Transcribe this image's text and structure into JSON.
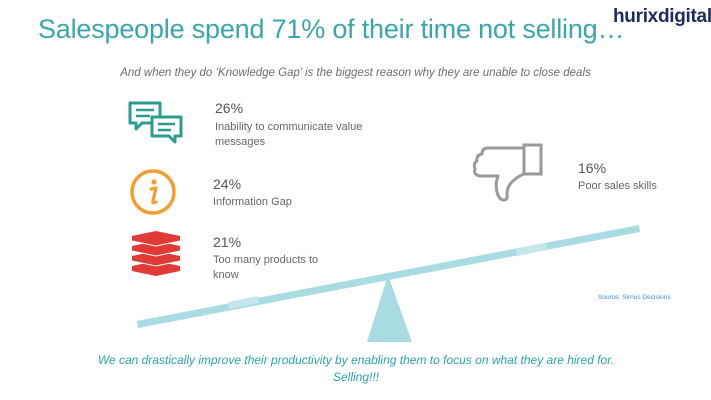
{
  "header": {
    "title": "Salespeople spend 71% of their time not selling…",
    "logo_text": "hurixdigital",
    "subtitle": "And when they do ‘Knowledge Gap’ is the biggest reason why they are unable to close deals"
  },
  "stats": [
    {
      "value": "26%",
      "label": "Inability to communicate value messages",
      "icon": "chat-bubbles-icon"
    },
    {
      "value": "24%",
      "label": "Information Gap",
      "icon": "info-icon"
    },
    {
      "value": "21%",
      "label": "Too many products to know",
      "icon": "stacked-layers-icon"
    },
    {
      "value": "16%",
      "label": "Poor sales skills",
      "icon": "thumbs-down-icon"
    }
  ],
  "source": "Source: Sirrius Decisions",
  "footer": {
    "line1": "We can drastically improve their productivity by enabling them to focus on what they are hired for.",
    "line2": "Selling!!!"
  },
  "colors": {
    "title": "#3aa6a8",
    "chat_icon": "#2a9d8f",
    "info_icon": "#f0a030",
    "layers_icon": "#e03a36",
    "thumbs_icon": "#9a9a9a",
    "seesaw": "#a9dbe3",
    "footer": "#2aa3b3"
  }
}
